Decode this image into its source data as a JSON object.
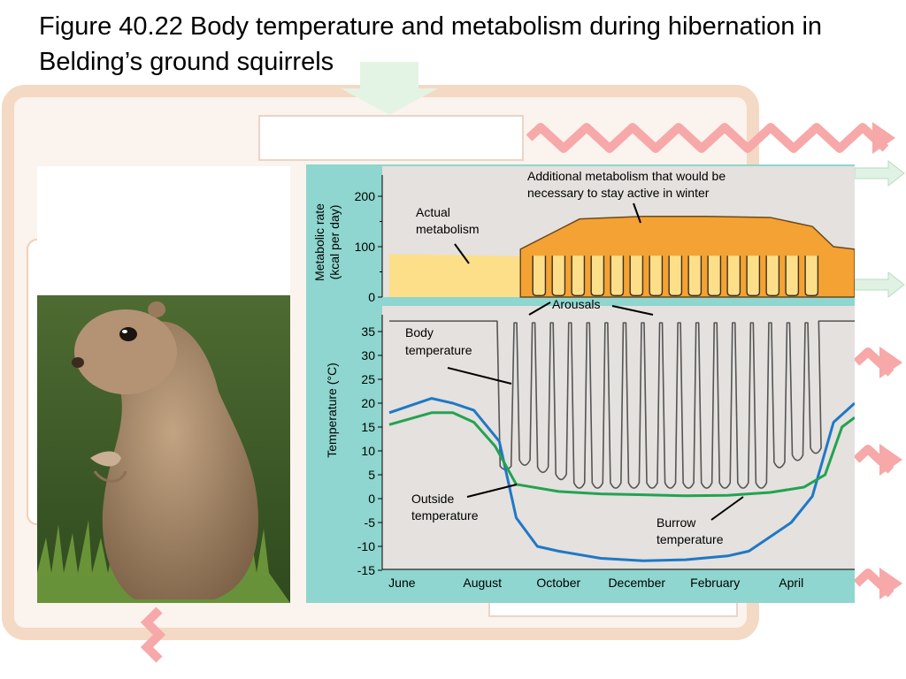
{
  "title": "Figure 40.22 Body temperature and metabolism during hibernation in Belding’s ground squirrels",
  "colors": {
    "panel_bg": "#8ed6cf",
    "plot_bg": "#e4e1de",
    "metabolism_fill": "#f4a233",
    "actual_fill": "#fddf8a",
    "body_line": "#555555",
    "outside_line": "#1f78c6",
    "burrow_line": "#22a352",
    "background_arrows": "#f7a8a8"
  },
  "chart_data": [
    {
      "type": "area",
      "ylabel": "Metabolic rate\n(kcal per day)",
      "y_ticks": [
        "200",
        "100",
        "0"
      ],
      "ylim": [
        0,
        200
      ],
      "x_ticks": [
        "June",
        "August",
        "October",
        "December",
        "February",
        "April"
      ],
      "series": [
        {
          "name": "Actual metabolism",
          "x": [
            0,
            2,
            3.5,
            4.2,
            5,
            6,
            7,
            8,
            9,
            10,
            10.5,
            11
          ],
          "values": [
            85,
            83,
            80,
            80,
            85,
            85,
            85,
            85,
            85,
            85,
            85,
            95
          ]
        },
        {
          "name": "Additional metabolism that would be necessary to stay active in winter",
          "x": [
            3.1,
            4.5,
            6,
            7.5,
            9,
            10,
            10.5,
            11
          ],
          "values": [
            95,
            155,
            160,
            160,
            158,
            140,
            100,
            95
          ]
        }
      ],
      "annotations": [
        "Actual metabolism",
        "Additional metabolism that would be necessary to stay active in winter"
      ]
    },
    {
      "type": "line",
      "ylabel": "Temperature (°C)",
      "y_ticks": [
        "35",
        "30",
        "25",
        "20",
        "15",
        "10",
        "5",
        "0",
        "-5",
        "-10",
        "-15"
      ],
      "ylim": [
        -15,
        35
      ],
      "x_ticks": [
        "June",
        "August",
        "October",
        "December",
        "February",
        "April"
      ],
      "series": [
        {
          "name": "Outside temperature",
          "x": [
            0,
            0.5,
            1,
            1.5,
            2,
            2.6,
            3.0,
            3.5,
            4,
            5,
            6,
            7,
            8,
            8.5,
            9,
            9.5,
            10,
            10.5,
            11
          ],
          "values": [
            18,
            19.5,
            21,
            20,
            18.5,
            12,
            -4,
            -10,
            -11,
            -12.5,
            -13,
            -12.8,
            -12,
            -11,
            -8,
            -5,
            0.5,
            16,
            20
          ]
        },
        {
          "name": "Burrow temperature",
          "x": [
            0,
            1,
            1.5,
            2,
            2.5,
            3,
            4,
            5,
            6,
            7,
            8,
            9,
            9.8,
            10.3,
            10.7,
            11
          ],
          "values": [
            15.5,
            18,
            18,
            16,
            11,
            3,
            1.5,
            1,
            0.8,
            0.6,
            0.7,
            1.3,
            2.4,
            5,
            15,
            17
          ]
        },
        {
          "name": "Body temperature",
          "x": [
            0,
            2.5,
            3.0,
            3.15,
            3.35,
            10.15,
            10.4,
            10.7,
            11
          ],
          "values": [
            37,
            37,
            6,
            37,
            6,
            6,
            37,
            37,
            37
          ]
        }
      ],
      "annotations": [
        "Arousals",
        "Body temperature",
        "Outside temperature",
        "Burrow temperature"
      ]
    }
  ],
  "labels": {
    "arousals": "Arousals",
    "actual_metabolism": "Actual\nmetabolism",
    "additional_metabolism": "Additional metabolism that would be\nnecessary to stay active in winter",
    "body_temperature": "Body\ntemperature",
    "outside_temperature": "Outside\ntemperature",
    "burrow_temperature": "Burrow\ntemperature"
  }
}
